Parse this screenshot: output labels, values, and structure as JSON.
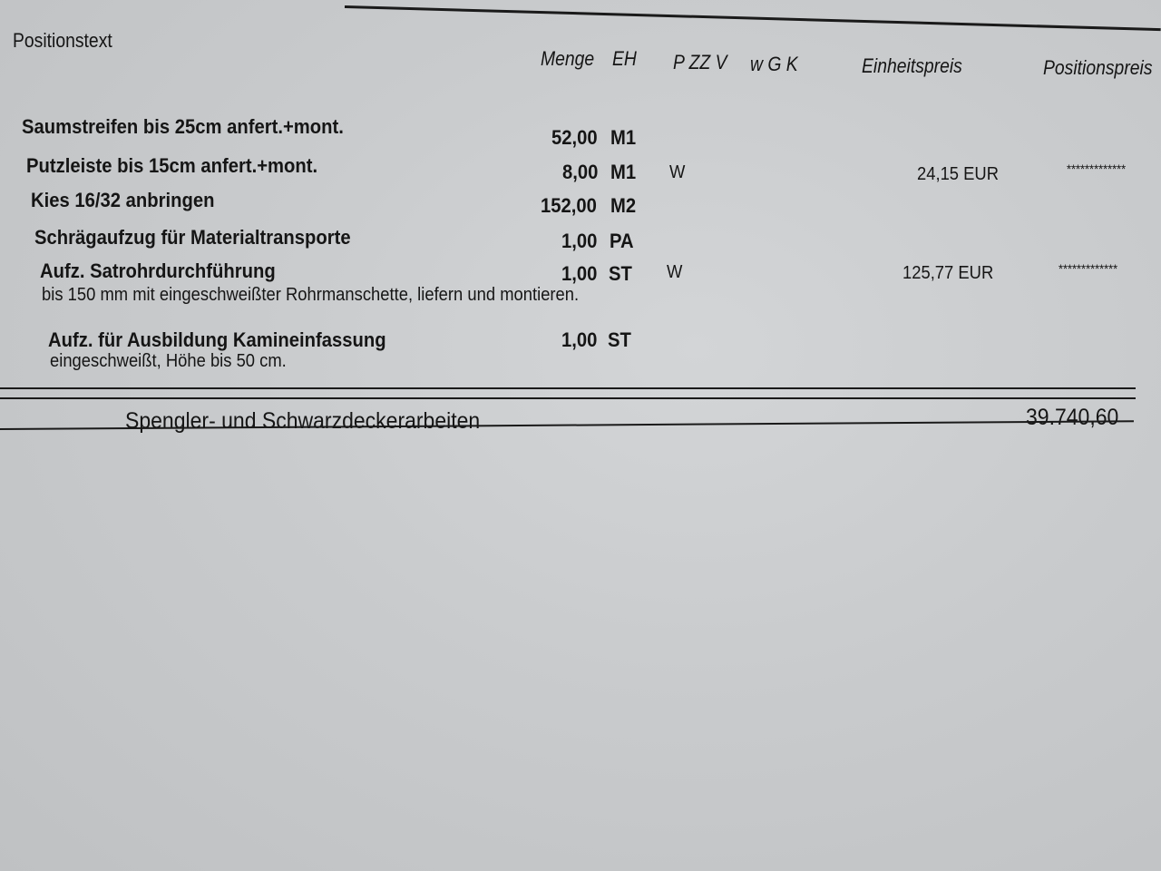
{
  "header": {
    "positionstext": "Positionstext",
    "menge": "Menge",
    "eh": "EH",
    "pzzv": "P ZZ V",
    "wgk": "w G K",
    "einheitspreis": "Einheitspreis",
    "positionspreis": "Positionspreis"
  },
  "rows": [
    {
      "text": "Saumstreifen bis 25cm anfert.+mont.",
      "menge": "52,00",
      "eh": "M1",
      "flag": "",
      "price": "",
      "total": ""
    },
    {
      "text": "Putzleiste bis 15cm anfert.+mont.",
      "menge": "8,00",
      "eh": "M1",
      "flag": "W",
      "price": "24,15 EUR",
      "total": "*************"
    },
    {
      "text": "Kies 16/32 anbringen",
      "menge": "152,00",
      "eh": "M2",
      "flag": "",
      "price": "",
      "total": ""
    },
    {
      "text": "Schrägaufzug für Materialtransporte",
      "menge": "1,00",
      "eh": "PA",
      "flag": "",
      "price": "",
      "total": ""
    },
    {
      "text": "Aufz. Satrohrdurchführung",
      "desc": "bis 150 mm mit eingeschweißter Rohrmanschette, liefern und montieren.",
      "menge": "1,00",
      "eh": "ST",
      "flag": "W",
      "price": "125,77 EUR",
      "total": "*************"
    },
    {
      "text": "Aufz. für Ausbildung Kamineinfassung",
      "desc": "eingeschweißt, Höhe bis 50 cm.",
      "menge": "1,00",
      "eh": "ST",
      "flag": "",
      "price": "",
      "total": ""
    }
  ],
  "summary": {
    "label": "Spengler- und Schwarzdeckerarbeiten",
    "total": "39.740,60"
  }
}
